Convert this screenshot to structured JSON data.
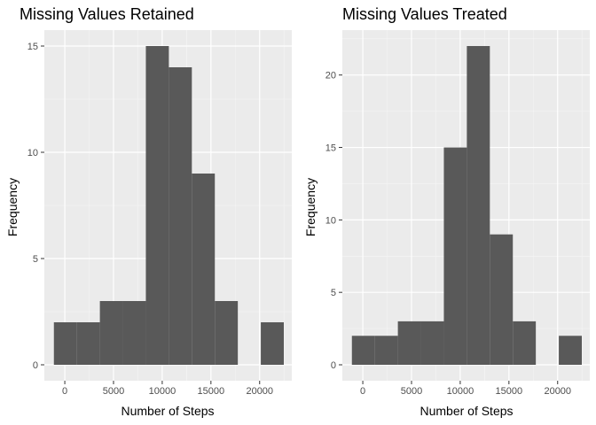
{
  "colors": {
    "panel_background": "#ebebeb",
    "grid_major": "#ffffff",
    "grid_minor": "#f5f5f5",
    "bar_fill": "#595959",
    "tick_mark": "#333333",
    "tick_text": "#4d4d4d"
  },
  "chart_data": [
    {
      "type": "bar",
      "title": "Missing Values Retained",
      "xlabel": "Number of Steps",
      "ylabel": "Frequency",
      "xlim": [
        -2100,
        23300
      ],
      "ylim": [
        -0.75,
        15.75
      ],
      "x_ticks": [
        0,
        5000,
        10000,
        15000,
        20000
      ],
      "x_tick_labels": [
        "0",
        "5000",
        "10000",
        "15000",
        "20000"
      ],
      "y_ticks": [
        0,
        5,
        10,
        15
      ],
      "y_tick_labels": [
        "0",
        "5",
        "10",
        "15"
      ],
      "bin_width": 2360,
      "bins": [
        {
          "start": -1120,
          "end": 1240,
          "count": 2
        },
        {
          "start": 1240,
          "end": 3600,
          "count": 2
        },
        {
          "start": 3600,
          "end": 5960,
          "count": 3
        },
        {
          "start": 5960,
          "end": 8320,
          "count": 3
        },
        {
          "start": 8320,
          "end": 10680,
          "count": 15
        },
        {
          "start": 10680,
          "end": 13040,
          "count": 14
        },
        {
          "start": 13040,
          "end": 15400,
          "count": 9
        },
        {
          "start": 15400,
          "end": 17760,
          "count": 3
        },
        {
          "start": 17760,
          "end": 20120,
          "count": 0
        },
        {
          "start": 20120,
          "end": 22480,
          "count": 2
        }
      ],
      "grid": true
    },
    {
      "type": "bar",
      "title": "Missing Values Treated",
      "xlabel": "Number of Steps",
      "ylabel": "Frequency",
      "xlim": [
        -2100,
        23300
      ],
      "ylim": [
        -1.1,
        23.1
      ],
      "x_ticks": [
        0,
        5000,
        10000,
        15000,
        20000
      ],
      "x_tick_labels": [
        "0",
        "5000",
        "10000",
        "15000",
        "20000"
      ],
      "y_ticks": [
        0,
        5,
        10,
        15,
        20
      ],
      "y_tick_labels": [
        "0",
        "5",
        "10",
        "15",
        "20"
      ],
      "bin_width": 2360,
      "bins": [
        {
          "start": -1120,
          "end": 1240,
          "count": 2
        },
        {
          "start": 1240,
          "end": 3600,
          "count": 2
        },
        {
          "start": 3600,
          "end": 5960,
          "count": 3
        },
        {
          "start": 5960,
          "end": 8320,
          "count": 3
        },
        {
          "start": 8320,
          "end": 10680,
          "count": 15
        },
        {
          "start": 10680,
          "end": 13040,
          "count": 22
        },
        {
          "start": 13040,
          "end": 15400,
          "count": 9
        },
        {
          "start": 15400,
          "end": 17760,
          "count": 3
        },
        {
          "start": 17760,
          "end": 20120,
          "count": 0
        },
        {
          "start": 20120,
          "end": 22480,
          "count": 2
        }
      ],
      "grid": true
    }
  ]
}
